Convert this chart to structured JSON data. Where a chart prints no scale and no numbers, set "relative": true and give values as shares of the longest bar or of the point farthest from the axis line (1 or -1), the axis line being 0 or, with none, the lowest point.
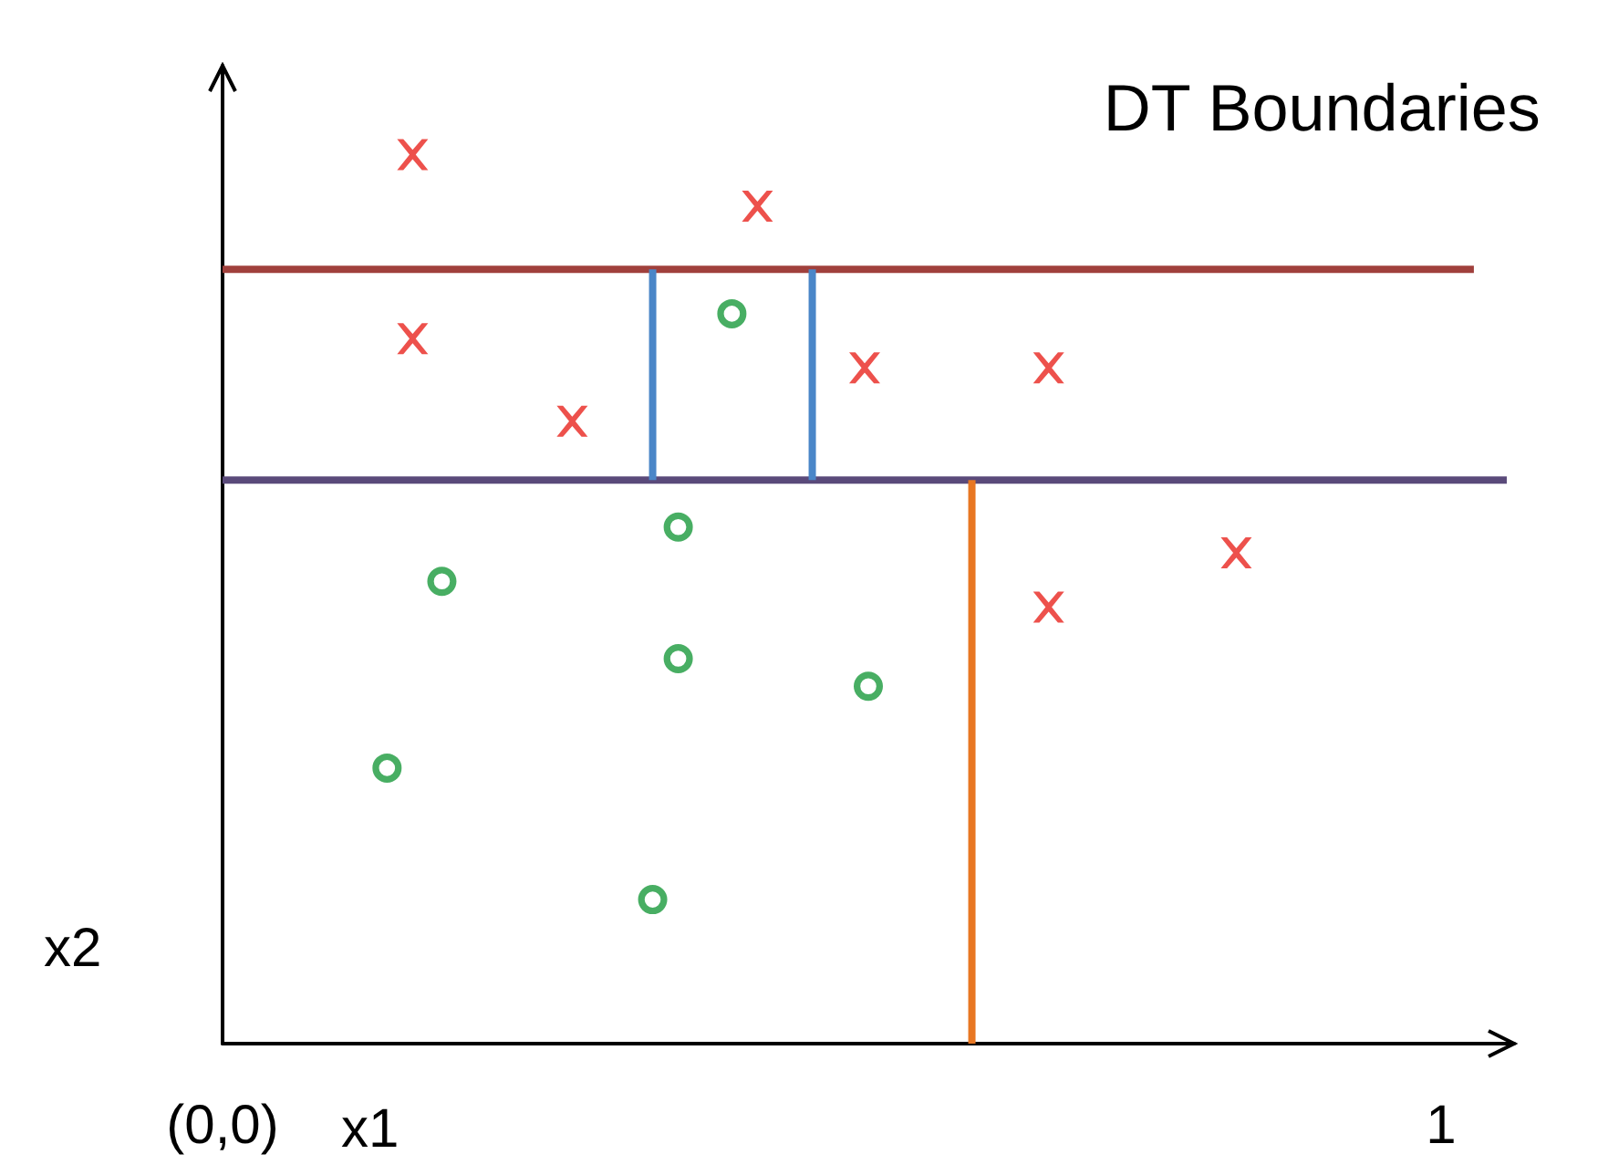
{
  "chart_data": {
    "type": "scatter",
    "title": "DT Boundaries",
    "xlabel": "x1",
    "ylabel": "x2",
    "relative": true,
    "xlim": [
      0,
      1.06
    ],
    "xticks": [
      {
        "value": 0,
        "label": "(0,0)"
      },
      1
    ],
    "grid": false,
    "series": [
      {
        "type": "scatter",
        "marker": "cross",
        "color": "#e8251f",
        "x": [
          0.156,
          0.439,
          0.156,
          0.287,
          0.527,
          0.678,
          0.832,
          0.678
        ],
        "values": [
          1.0,
          0.942,
          0.793,
          0.7,
          0.76,
          0.76,
          0.552,
          0.491
        ]
      },
      {
        "type": "scatter",
        "marker": "circle",
        "color": "#1a9a3c",
        "x": [
          0.418,
          0.374,
          0.18,
          0.374,
          0.53,
          0.135,
          0.353
        ],
        "values": [
          0.821,
          0.581,
          0.52,
          0.433,
          0.402,
          0.31,
          0.162
        ]
      },
      {
        "type": "line",
        "marker": "none",
        "color": "#a0403c",
        "x": [
          0,
          1.027
        ],
        "values": [
          0.871,
          0.871
        ]
      },
      {
        "type": "line",
        "marker": "none",
        "color": "#5a4a7a",
        "x": [
          0,
          1.054
        ],
        "values": [
          0.634,
          0.634
        ]
      },
      {
        "type": "line",
        "marker": "none",
        "color": "#4a86c8",
        "x": [
          0.353,
          0.353
        ],
        "values": [
          0.634,
          0.871
        ]
      },
      {
        "type": "line",
        "marker": "none",
        "color": "#4a86c8",
        "x": [
          0.484,
          0.484
        ],
        "values": [
          0.634,
          0.871
        ]
      },
      {
        "type": "line",
        "marker": "none",
        "color": "#e87722",
        "x": [
          0.615,
          0.615
        ],
        "values": [
          0,
          0.634
        ]
      }
    ]
  }
}
